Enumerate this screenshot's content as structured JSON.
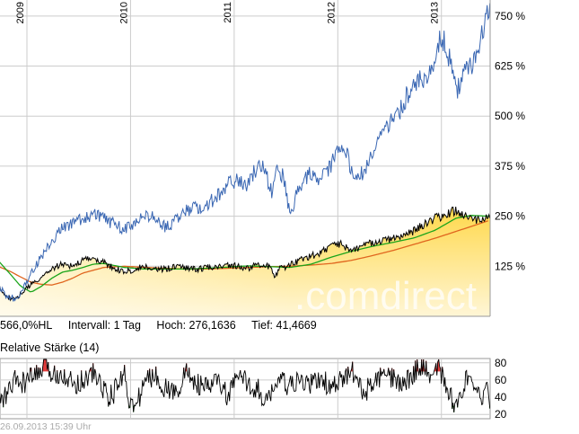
{
  "info": {
    "hl": "566,0%HL",
    "interval": "Intervall: 1 Tag",
    "high": "Hoch: 276,1636",
    "low": "Tief: 41,4669"
  },
  "rsi_title": "Relative Stärke (14)",
  "timestamp": "26.09.2013 15:39 Uhr",
  "watermark": ".comdirect",
  "colors": {
    "stock_line": "#3a67b3",
    "index_line": "#000000",
    "ma_short": "#1aa51a",
    "ma_long": "#e0651e",
    "area_top": "#ffd84a",
    "area_bottom": "#fff6d6",
    "grid": "#cccccc",
    "rsi_over": "#dd2222",
    "rsi_under": "#1e9a1e"
  },
  "chart_data": [
    {
      "type": "line",
      "x_ticks": [
        "2009",
        "2010",
        "2011",
        "2012",
        "2013"
      ],
      "y_ticks": [
        "750 %",
        "625 %",
        "500 %",
        "375 %",
        "250 %",
        "125 %"
      ],
      "y_tick_values": [
        750,
        625,
        500,
        375,
        250,
        125
      ],
      "ylim": [
        0,
        790
      ],
      "xlim": [
        2009.0,
        2013.73
      ],
      "grid": true,
      "series": [
        {
          "x": [
            2008.98,
            2009.05,
            2009.1,
            2009.15,
            2009.2,
            2009.3,
            2009.4,
            2009.5,
            2009.6,
            2009.75,
            2009.9,
            2010.0,
            2010.1,
            2010.2,
            2010.3,
            2010.4,
            2010.5,
            2010.6,
            2010.7,
            2010.8,
            2010.9,
            2011.0,
            2011.1,
            2011.2,
            2011.3,
            2011.38,
            2011.45,
            2011.5,
            2011.55,
            2011.62,
            2011.68,
            2011.75,
            2011.8,
            2011.85,
            2011.9,
            2011.95,
            2012.0,
            2012.1,
            2012.2,
            2012.3,
            2012.35,
            2012.4,
            2012.45,
            2012.55,
            2012.65,
            2012.75,
            2012.85,
            2012.9,
            2012.95,
            2013.0,
            2013.1,
            2013.2,
            2013.25,
            2013.3,
            2013.35,
            2013.4,
            2013.45,
            2013.5,
            2013.6,
            2013.65,
            2013.7,
            2013.73
          ],
          "values": [
            75,
            55,
            48,
            42,
            60,
            105,
            150,
            190,
            220,
            240,
            255,
            245,
            230,
            215,
            230,
            250,
            245,
            220,
            240,
            265,
            270,
            280,
            300,
            330,
            340,
            320,
            360,
            380,
            370,
            310,
            370,
            340,
            240,
            300,
            330,
            345,
            360,
            340,
            380,
            430,
            410,
            350,
            340,
            380,
            440,
            480,
            510,
            540,
            555,
            570,
            600,
            640,
            700,
            690,
            620,
            560,
            580,
            610,
            650,
            700,
            760,
            785
          ]
        },
        {
          "x": [
            2008.98,
            2009.05,
            2009.1,
            2009.15,
            2009.2,
            2009.3,
            2009.4,
            2009.5,
            2009.6,
            2009.7,
            2009.8,
            2009.9,
            2010.0,
            2010.1,
            2010.2,
            2010.3,
            2010.4,
            2010.5,
            2010.6,
            2010.7,
            2010.8,
            2010.9,
            2011.0,
            2011.1,
            2011.2,
            2011.3,
            2011.4,
            2011.5,
            2011.6,
            2011.65,
            2011.7,
            2011.8,
            2011.9,
            2012.0,
            2012.1,
            2012.2,
            2012.3,
            2012.35,
            2012.4,
            2012.5,
            2012.6,
            2012.7,
            2012.8,
            2012.9,
            2013.0,
            2013.05,
            2013.1,
            2013.2,
            2013.3,
            2013.35,
            2013.4,
            2013.5,
            2013.6,
            2013.73
          ],
          "values": [
            75,
            55,
            45,
            42,
            55,
            80,
            95,
            120,
            130,
            125,
            140,
            145,
            135,
            120,
            110,
            118,
            125,
            115,
            118,
            125,
            120,
            118,
            122,
            125,
            128,
            125,
            120,
            130,
            125,
            100,
            118,
            128,
            140,
            150,
            160,
            175,
            180,
            170,
            165,
            175,
            185,
            190,
            195,
            200,
            215,
            225,
            230,
            245,
            250,
            260,
            265,
            250,
            240,
            245
          ]
        },
        {
          "x": [
            2008.98,
            2009.1,
            2009.2,
            2009.3,
            2009.4,
            2009.5,
            2009.6,
            2009.7,
            2009.8,
            2009.9,
            2010.0,
            2010.2,
            2010.4,
            2010.6,
            2010.8,
            2011.0,
            2011.2,
            2011.4,
            2011.6,
            2011.8,
            2012.0,
            2012.2,
            2012.4,
            2012.6,
            2012.8,
            2013.0,
            2013.2,
            2013.4,
            2013.55,
            2013.73
          ],
          "values": [
            140,
            105,
            75,
            60,
            75,
            95,
            110,
            115,
            122,
            130,
            132,
            122,
            118,
            118,
            118,
            120,
            123,
            126,
            124,
            122,
            130,
            148,
            163,
            175,
            185,
            196,
            215,
            245,
            252,
            250
          ]
        },
        {
          "x": [
            2008.98,
            2009.1,
            2009.2,
            2009.3,
            2009.4,
            2009.5,
            2009.6,
            2009.7,
            2009.8,
            2009.9,
            2010.0,
            2010.2,
            2010.4,
            2010.6,
            2010.8,
            2011.0,
            2011.2,
            2011.4,
            2011.6,
            2011.8,
            2012.0,
            2012.2,
            2012.4,
            2012.6,
            2012.8,
            2013.0,
            2013.2,
            2013.4,
            2013.73
          ],
          "values": [
            125,
            112,
            98,
            85,
            80,
            78,
            85,
            95,
            108,
            115,
            122,
            125,
            122,
            120,
            118,
            118,
            120,
            122,
            124,
            125,
            128,
            132,
            140,
            152,
            165,
            180,
            195,
            212,
            240
          ]
        }
      ]
    },
    {
      "type": "line",
      "y_ticks": [
        "80",
        "60",
        "40",
        "20"
      ],
      "y_tick_values": [
        80,
        60,
        40,
        20
      ],
      "ylim": [
        15,
        85
      ],
      "xlim": [
        2009.0,
        2013.73
      ],
      "grid": true,
      "series": [
        {
          "x": [
            2008.98,
            2009.05,
            2009.1,
            2009.15,
            2009.2,
            2009.3,
            2009.4,
            2009.45,
            2009.5,
            2009.6,
            2009.7,
            2009.8,
            2009.9,
            2010.0,
            2010.05,
            2010.1,
            2010.2,
            2010.25,
            2010.3,
            2010.4,
            2010.5,
            2010.6,
            2010.7,
            2010.8,
            2010.9,
            2011.0,
            2011.1,
            2011.2,
            2011.3,
            2011.4,
            2011.5,
            2011.55,
            2011.6,
            2011.7,
            2011.8,
            2011.9,
            2012.0,
            2012.1,
            2012.2,
            2012.3,
            2012.4,
            2012.5,
            2012.6,
            2012.7,
            2012.8,
            2012.9,
            2013.0,
            2013.1,
            2013.15,
            2013.2,
            2013.3,
            2013.35,
            2013.4,
            2013.5,
            2013.6,
            2013.7,
            2013.73
          ],
          "values": [
            35,
            40,
            50,
            60,
            55,
            62,
            70,
            80,
            65,
            70,
            55,
            60,
            68,
            50,
            40,
            45,
            70,
            35,
            25,
            60,
            65,
            50,
            45,
            70,
            55,
            50,
            60,
            40,
            65,
            55,
            50,
            25,
            45,
            60,
            52,
            58,
            55,
            62,
            50,
            60,
            70,
            45,
            55,
            65,
            60,
            55,
            70,
            78,
            60,
            82,
            55,
            40,
            30,
            62,
            40,
            45,
            38
          ]
        }
      ]
    }
  ]
}
